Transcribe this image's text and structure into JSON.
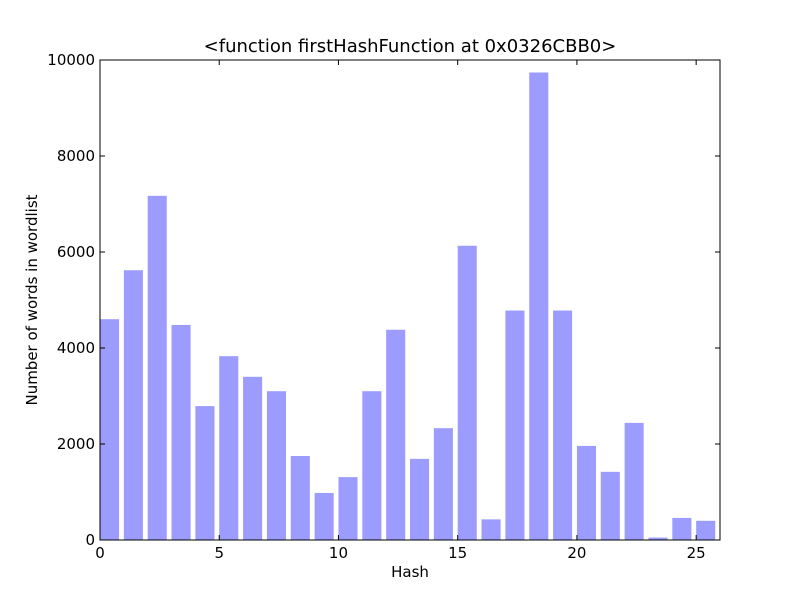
{
  "chart_data": {
    "type": "bar",
    "title": "<function firstHashFunction at 0x0326CBB0>",
    "xlabel": "Hash",
    "ylabel": "Number of words in wordlist",
    "x": [
      0,
      1,
      2,
      3,
      4,
      5,
      6,
      7,
      8,
      9,
      10,
      11,
      12,
      13,
      14,
      15,
      16,
      17,
      18,
      19,
      20,
      21,
      22,
      23,
      24,
      25
    ],
    "values": [
      4600,
      5620,
      7170,
      4480,
      2790,
      3830,
      3400,
      3100,
      1750,
      980,
      1310,
      3100,
      4380,
      1690,
      2330,
      6130,
      430,
      4780,
      9740,
      4780,
      1960,
      1420,
      2440,
      50,
      460,
      400
    ],
    "bar_color": "#9c9cff",
    "xlim": [
      0,
      26
    ],
    "ylim": [
      0,
      10000
    ],
    "xticks": [
      0,
      5,
      10,
      15,
      20,
      25
    ],
    "yticks": [
      0,
      2000,
      4000,
      6000,
      8000,
      10000
    ],
    "xtick_labels": [
      "0",
      "5",
      "10",
      "15",
      "20",
      "25"
    ],
    "ytick_labels": [
      "0",
      "2000",
      "4000",
      "6000",
      "8000",
      "10000"
    ],
    "grid": false,
    "legend": "none"
  }
}
